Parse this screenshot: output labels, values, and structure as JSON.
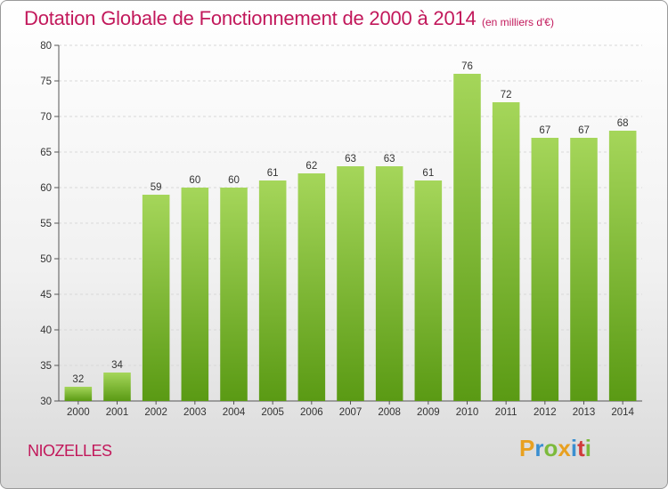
{
  "header": {
    "title": "Dotation Globale de Fonctionnement de 2000 à 2014",
    "subtitle": "(en milliers d'€)"
  },
  "footer": {
    "commune": "NIOZELLES",
    "logo": "Proxiti"
  },
  "colors": {
    "title": "#c2185b",
    "bar_top": "#a5d65a",
    "bar_bottom": "#5a9a14",
    "grid": "#d8d8d8"
  },
  "chart_data": {
    "type": "bar",
    "title": "Dotation Globale de Fonctionnement de 2000 à 2014",
    "subtitle": "(en milliers d'€)",
    "xlabel": "",
    "ylabel": "",
    "categories": [
      "2000",
      "2001",
      "2002",
      "2003",
      "2004",
      "2005",
      "2006",
      "2007",
      "2008",
      "2009",
      "2010",
      "2011",
      "2012",
      "2013",
      "2014"
    ],
    "values": [
      32,
      34,
      59,
      60,
      60,
      61,
      62,
      63,
      63,
      61,
      76,
      72,
      67,
      67,
      68
    ],
    "ylim": [
      30,
      80
    ],
    "yticks": [
      30,
      35,
      40,
      45,
      50,
      55,
      60,
      65,
      70,
      75,
      80
    ],
    "grid": "horizontal, dashed",
    "legend": "none"
  }
}
